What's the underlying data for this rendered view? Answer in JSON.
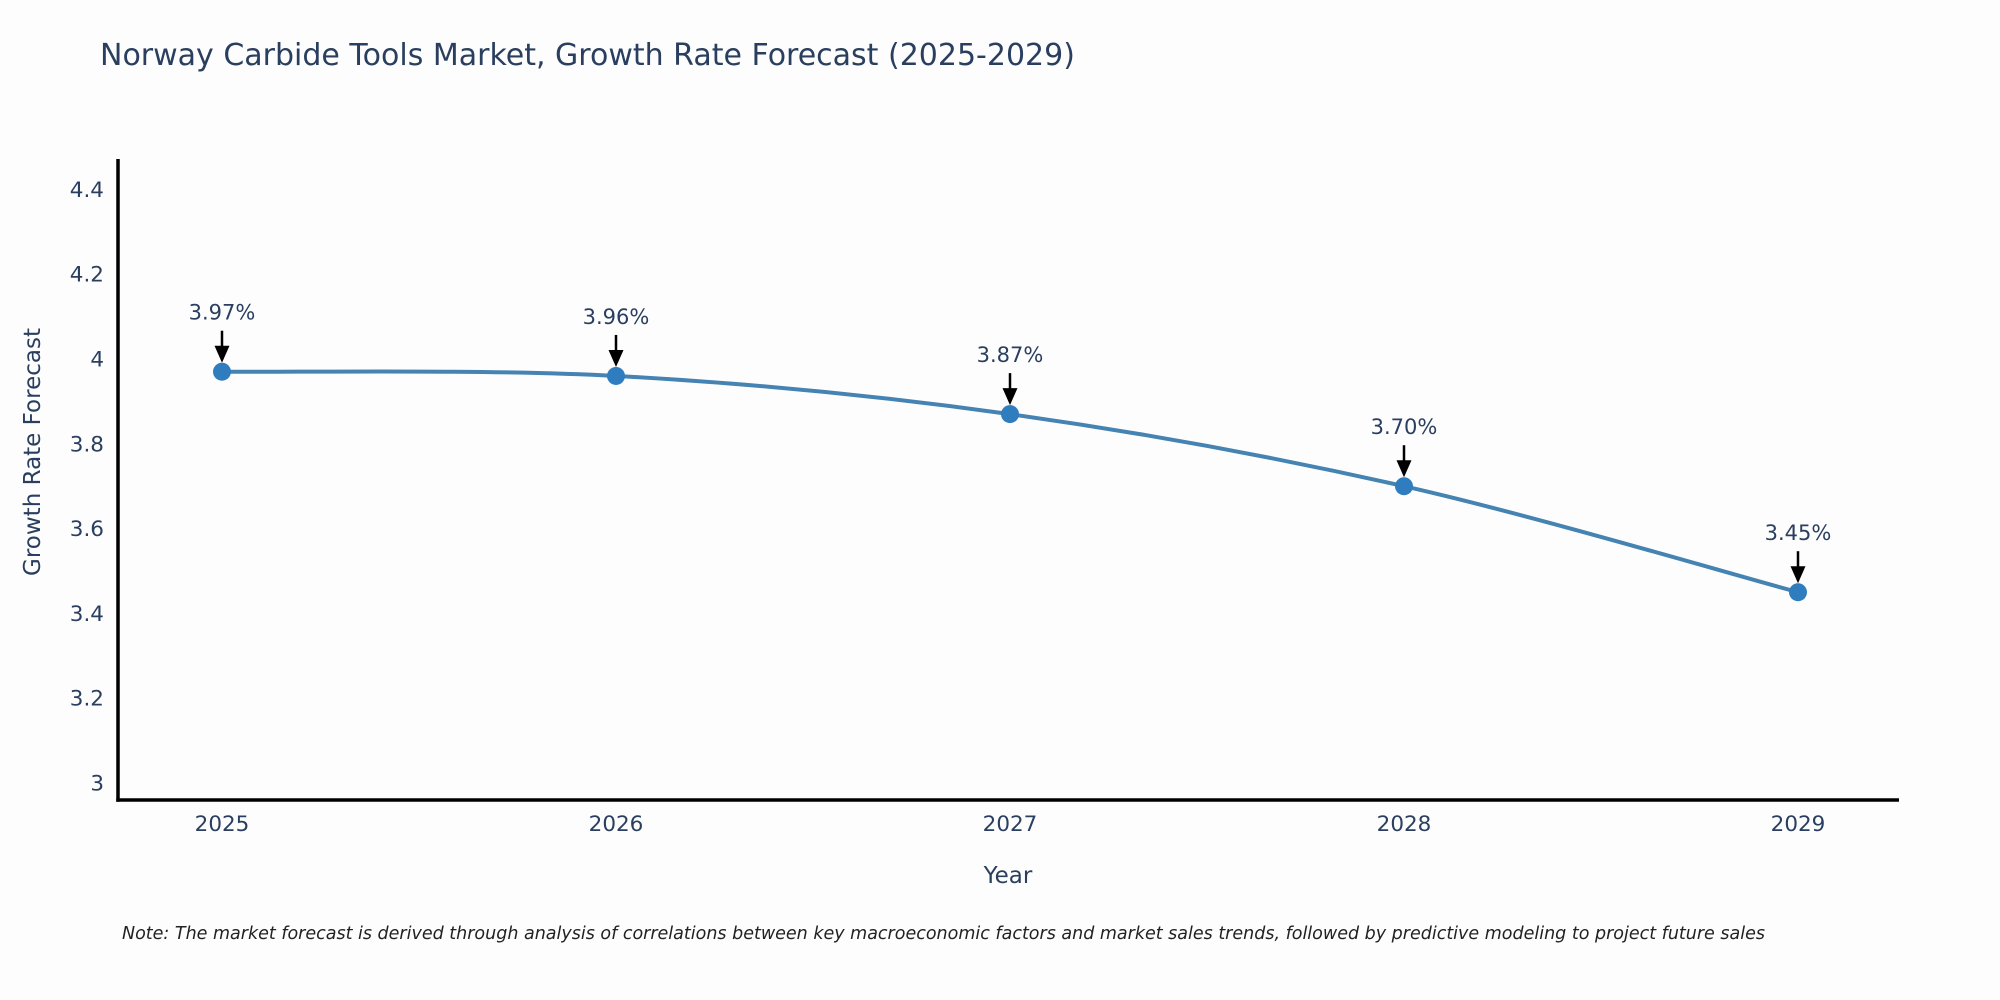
{
  "chart_data": {
    "type": "line",
    "title": "Norway Carbide Tools Market, Growth Rate Forecast (2025-2029)",
    "xlabel": "Year",
    "ylabel": "Growth Rate Forecast",
    "categories": [
      "2025",
      "2026",
      "2027",
      "2028",
      "2029"
    ],
    "series": [
      {
        "name": "Growth Rate Forecast",
        "values": [
          3.97,
          3.96,
          3.87,
          3.7,
          3.45
        ]
      }
    ],
    "point_labels": [
      "3.97%",
      "3.96%",
      "3.87%",
      "3.70%",
      "3.45%"
    ],
    "ytick_values": [
      3,
      3.2,
      3.4,
      3.6,
      3.8,
      4,
      4.2,
      4.4
    ],
    "ytick_labels": [
      "3",
      "3.2",
      "3.4",
      "3.6",
      "3.8",
      "4",
      "4.2",
      "4.4"
    ],
    "ylim": [
      2.96,
      4.47
    ],
    "grid": false,
    "legend_position": "none",
    "colors": {
      "line": "#4483b2",
      "marker": "#2f7cbe",
      "axis": "#000000",
      "text": "#2a3f5f",
      "annotation_arrow": "#000000"
    }
  },
  "note": "Note: The market forecast is derived through analysis of correlations between key macroeconomic factors and market sales trends, followed by predictive modeling to project future sales"
}
